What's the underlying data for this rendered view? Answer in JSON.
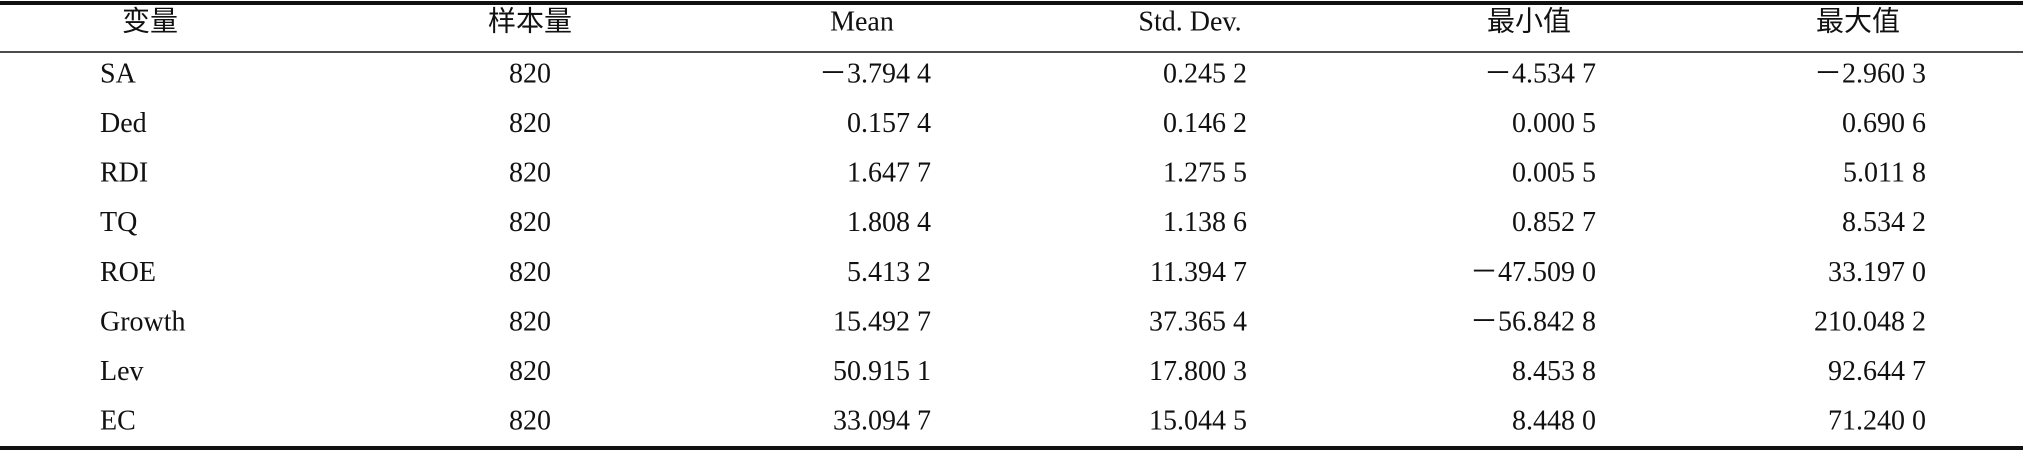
{
  "table": {
    "header": [
      "变量",
      "样本量",
      "Mean",
      "Std. Dev.",
      "最小值",
      "最大值"
    ],
    "rows": [
      [
        "SA",
        "820",
        "－3.794 4",
        "0.245 2",
        "－4.534 7",
        "－2.960 3"
      ],
      [
        "Ded",
        "820",
        "0.157 4",
        "0.146 2",
        "0.000 5",
        "0.690 6"
      ],
      [
        "RDI",
        "820",
        "1.647 7",
        "1.275 5",
        "0.005 5",
        "5.011 8"
      ],
      [
        "TQ",
        "820",
        "1.808 4",
        "1.138 6",
        "0.852 7",
        "8.534 2"
      ],
      [
        "ROE",
        "820",
        "5.413 2",
        "11.394 7",
        "－47.509 0",
        "33.197 0"
      ],
      [
        "Growth",
        "820",
        "15.492 7",
        "37.365 4",
        "－56.842 8",
        "210.048 2"
      ],
      [
        "Lev",
        "820",
        "50.915 1",
        "17.800 3",
        "8.453 8",
        "92.644 7"
      ],
      [
        "EC",
        "820",
        "33.094 7",
        "15.044 5",
        "8.448 0",
        "71.240 0"
      ]
    ]
  }
}
